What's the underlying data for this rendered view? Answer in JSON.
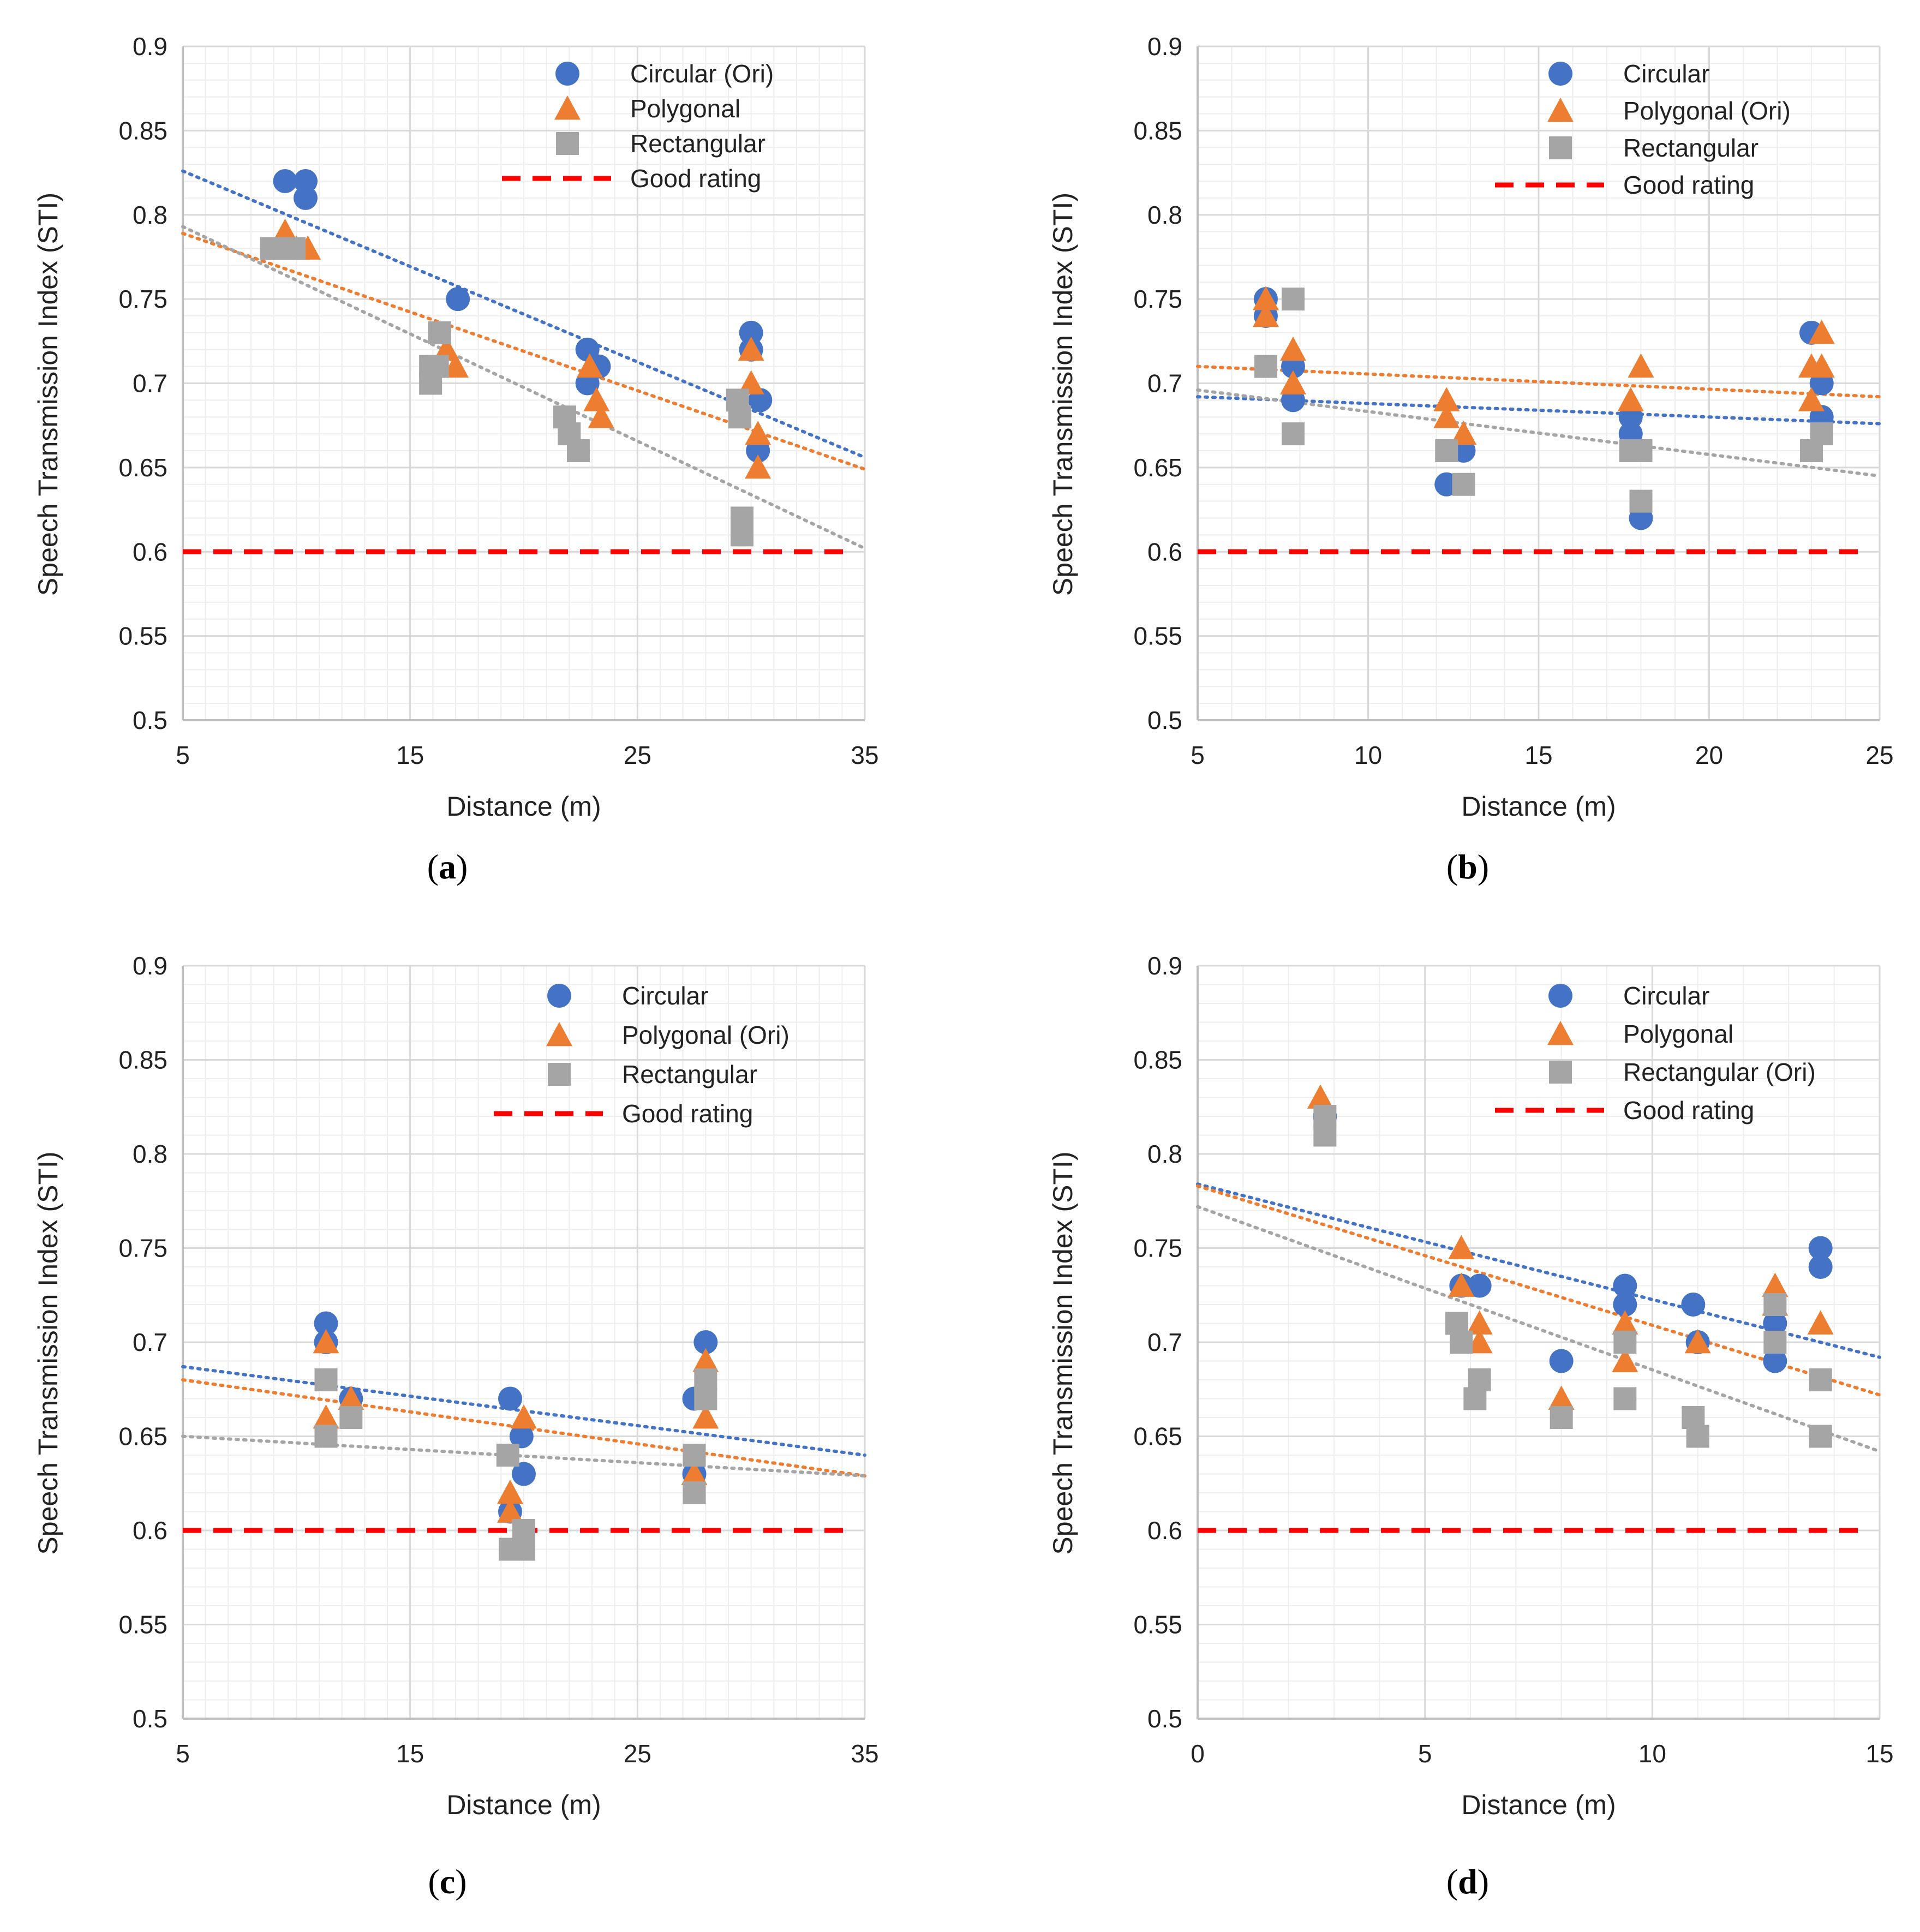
{
  "colors": {
    "circular": "#4472C4",
    "polygonal": "#ED7D31",
    "rectangular": "#A5A5A5",
    "good_rating": "#FF0000",
    "grid_major": "#D9D9D9",
    "grid_minor": "#EEEEEE",
    "axis": "#BFBFBF"
  },
  "chart_data": [
    {
      "type": "scatter",
      "panel_label": "a",
      "xlabel": "Distance (m)",
      "ylabel": "Speech Transmission Index (STI)",
      "xlim": [
        5,
        35
      ],
      "ylim": [
        0.5,
        0.9
      ],
      "xticks": [
        "5",
        "15",
        "25",
        "35"
      ],
      "yticks": [
        "0.5",
        "0.55",
        "0.6",
        "0.65",
        "0.7",
        "0.75",
        "0.8",
        "0.85",
        "0.9"
      ],
      "good_rating": 0.6,
      "legend_position": "top-right",
      "series": [
        {
          "key": "circular",
          "name": "Circular (Ori)",
          "marker": "circle",
          "points": [
            [
              9.5,
              0.82
            ],
            [
              10.4,
              0.82
            ],
            [
              10.4,
              0.81
            ],
            [
              17.1,
              0.75
            ],
            [
              22.8,
              0.72
            ],
            [
              22.8,
              0.7
            ],
            [
              23.3,
              0.71
            ],
            [
              30.0,
              0.73
            ],
            [
              30.0,
              0.72
            ],
            [
              30.4,
              0.69
            ],
            [
              30.3,
              0.66
            ]
          ],
          "trend": [
            [
              5,
              0.826
            ],
            [
              35,
              0.656
            ]
          ]
        },
        {
          "key": "polygonal",
          "name": "Polygonal",
          "marker": "triangle",
          "points": [
            [
              9.5,
              0.79
            ],
            [
              10.0,
              0.78
            ],
            [
              10.5,
              0.78
            ],
            [
              16.6,
              0.72
            ],
            [
              17.0,
              0.71
            ],
            [
              22.9,
              0.71
            ],
            [
              23.2,
              0.69
            ],
            [
              23.4,
              0.68
            ],
            [
              30.0,
              0.72
            ],
            [
              30.0,
              0.7
            ],
            [
              30.3,
              0.67
            ],
            [
              30.3,
              0.65
            ]
          ],
          "trend": [
            [
              5,
              0.789
            ],
            [
              35,
              0.649
            ]
          ]
        },
        {
          "key": "rectangular",
          "name": "Rectangular",
          "marker": "square",
          "points": [
            [
              8.9,
              0.78
            ],
            [
              9.9,
              0.78
            ],
            [
              16.3,
              0.73
            ],
            [
              15.9,
              0.71
            ],
            [
              16.2,
              0.71
            ],
            [
              15.9,
              0.7
            ],
            [
              21.8,
              0.68
            ],
            [
              22.0,
              0.67
            ],
            [
              22.4,
              0.66
            ],
            [
              29.4,
              0.69
            ],
            [
              29.5,
              0.68
            ],
            [
              29.6,
              0.62
            ],
            [
              29.6,
              0.61
            ]
          ],
          "trend": [
            [
              5,
              0.793
            ],
            [
              35,
              0.602
            ]
          ]
        }
      ],
      "good_label": "Good rating"
    },
    {
      "type": "scatter",
      "panel_label": "b",
      "xlabel": "Distance (m)",
      "ylabel": "Speech Transmission Index (STI)",
      "xlim": [
        5,
        25
      ],
      "ylim": [
        0.5,
        0.9
      ],
      "xticks": [
        "5",
        "10",
        "15",
        "20",
        "25"
      ],
      "yticks": [
        "0.5",
        "0.55",
        "0.6",
        "0.65",
        "0.7",
        "0.75",
        "0.8",
        "0.85",
        "0.9"
      ],
      "good_rating": 0.6,
      "legend_position": "top-right",
      "series": [
        {
          "key": "circular",
          "name": "Circular",
          "marker": "circle",
          "points": [
            [
              7.0,
              0.75
            ],
            [
              7.0,
              0.74
            ],
            [
              7.8,
              0.71
            ],
            [
              7.8,
              0.69
            ],
            [
              12.3,
              0.64
            ],
            [
              12.8,
              0.66
            ],
            [
              17.7,
              0.68
            ],
            [
              17.7,
              0.67
            ],
            [
              18.0,
              0.62
            ],
            [
              23.0,
              0.73
            ],
            [
              23.3,
              0.7
            ],
            [
              23.3,
              0.68
            ]
          ],
          "trend": [
            [
              5,
              0.692
            ],
            [
              25,
              0.676
            ]
          ]
        },
        {
          "key": "polygonal",
          "name": "Polygonal (Ori)",
          "marker": "triangle",
          "points": [
            [
              7.0,
              0.75
            ],
            [
              7.0,
              0.74
            ],
            [
              7.8,
              0.72
            ],
            [
              7.8,
              0.7
            ],
            [
              12.3,
              0.69
            ],
            [
              12.3,
              0.68
            ],
            [
              12.8,
              0.67
            ],
            [
              17.7,
              0.69
            ],
            [
              18.0,
              0.71
            ],
            [
              23.0,
              0.71
            ],
            [
              23.0,
              0.69
            ],
            [
              23.3,
              0.73
            ],
            [
              23.3,
              0.71
            ]
          ],
          "trend": [
            [
              5,
              0.71
            ],
            [
              25,
              0.692
            ]
          ]
        },
        {
          "key": "rectangular",
          "name": "Rectangular",
          "marker": "square",
          "points": [
            [
              7.0,
              0.71
            ],
            [
              7.8,
              0.75
            ],
            [
              7.8,
              0.67
            ],
            [
              12.3,
              0.66
            ],
            [
              12.8,
              0.64
            ],
            [
              17.7,
              0.66
            ],
            [
              18.0,
              0.66
            ],
            [
              18.0,
              0.63
            ],
            [
              23.0,
              0.66
            ],
            [
              23.3,
              0.67
            ]
          ],
          "trend": [
            [
              5,
              0.696
            ],
            [
              25,
              0.645
            ]
          ]
        }
      ],
      "good_label": "Good rating"
    },
    {
      "type": "scatter",
      "panel_label": "c",
      "xlabel": "Distance (m)",
      "ylabel": "Speech Transmission Index (STI)",
      "xlim": [
        5,
        35
      ],
      "ylim": [
        0.5,
        0.9
      ],
      "xticks": [
        "5",
        "15",
        "25",
        "35"
      ],
      "yticks": [
        "0.5",
        "0.55",
        "0.6",
        "0.65",
        "0.7",
        "0.75",
        "0.8",
        "0.85",
        "0.9"
      ],
      "good_rating": 0.6,
      "legend_position": "top-right",
      "series": [
        {
          "key": "circular",
          "name": "Circular",
          "marker": "circle",
          "points": [
            [
              11.3,
              0.71
            ],
            [
              11.3,
              0.7
            ],
            [
              12.4,
              0.67
            ],
            [
              19.4,
              0.67
            ],
            [
              19.4,
              0.61
            ],
            [
              19.9,
              0.65
            ],
            [
              20.0,
              0.63
            ],
            [
              27.5,
              0.67
            ],
            [
              27.5,
              0.63
            ],
            [
              28.0,
              0.7
            ]
          ],
          "trend": [
            [
              5,
              0.687
            ],
            [
              35,
              0.64
            ]
          ]
        },
        {
          "key": "polygonal",
          "name": "Polygonal (Ori)",
          "marker": "triangle",
          "points": [
            [
              11.3,
              0.7
            ],
            [
              11.3,
              0.66
            ],
            [
              12.4,
              0.67
            ],
            [
              19.4,
              0.62
            ],
            [
              19.4,
              0.61
            ],
            [
              20.0,
              0.66
            ],
            [
              27.5,
              0.63
            ],
            [
              28.0,
              0.69
            ],
            [
              28.0,
              0.66
            ]
          ],
          "trend": [
            [
              5,
              0.68
            ],
            [
              35,
              0.629
            ]
          ]
        },
        {
          "key": "rectangular",
          "name": "Rectangular",
          "marker": "square",
          "points": [
            [
              11.3,
              0.68
            ],
            [
              11.3,
              0.65
            ],
            [
              12.4,
              0.66
            ],
            [
              19.3,
              0.64
            ],
            [
              19.4,
              0.59
            ],
            [
              20.0,
              0.6
            ],
            [
              20.0,
              0.59
            ],
            [
              27.5,
              0.64
            ],
            [
              27.5,
              0.62
            ],
            [
              28.0,
              0.68
            ],
            [
              28.0,
              0.67
            ]
          ],
          "trend": [
            [
              5,
              0.65
            ],
            [
              35,
              0.629
            ]
          ]
        }
      ],
      "good_label": "Good rating"
    },
    {
      "type": "scatter",
      "panel_label": "d",
      "xlabel": "Distance (m)",
      "ylabel": "Speech Transmission Index (STI)",
      "xlim": [
        0,
        15
      ],
      "ylim": [
        0.5,
        0.9
      ],
      "xticks": [
        "0",
        "5",
        "10",
        "15"
      ],
      "yticks": [
        "0.5",
        "0.55",
        "0.6",
        "0.65",
        "0.7",
        "0.75",
        "0.8",
        "0.85",
        "0.9"
      ],
      "good_rating": 0.6,
      "legend_position": "top-right",
      "series": [
        {
          "key": "circular",
          "name": "Circular",
          "marker": "circle",
          "points": [
            [
              2.8,
              0.82
            ],
            [
              5.8,
              0.73
            ],
            [
              6.2,
              0.73
            ],
            [
              8.0,
              0.69
            ],
            [
              9.4,
              0.73
            ],
            [
              9.4,
              0.72
            ],
            [
              10.9,
              0.72
            ],
            [
              11.0,
              0.7
            ],
            [
              12.7,
              0.71
            ],
            [
              12.7,
              0.69
            ],
            [
              13.7,
              0.75
            ],
            [
              13.7,
              0.74
            ]
          ],
          "trend": [
            [
              0,
              0.784
            ],
            [
              15,
              0.692
            ]
          ]
        },
        {
          "key": "polygonal",
          "name": "Polygonal",
          "marker": "triangle",
          "points": [
            [
              2.7,
              0.83
            ],
            [
              5.8,
              0.75
            ],
            [
              5.8,
              0.73
            ],
            [
              6.2,
              0.71
            ],
            [
              6.2,
              0.7
            ],
            [
              8.0,
              0.67
            ],
            [
              9.4,
              0.71
            ],
            [
              9.4,
              0.69
            ],
            [
              11.0,
              0.7
            ],
            [
              12.7,
              0.73
            ],
            [
              12.7,
              0.72
            ],
            [
              13.7,
              0.71
            ]
          ],
          "trend": [
            [
              0,
              0.783
            ],
            [
              15,
              0.672
            ]
          ]
        },
        {
          "key": "rectangular",
          "name": "Rectangular (Ori)",
          "marker": "square",
          "points": [
            [
              2.8,
              0.82
            ],
            [
              2.8,
              0.81
            ],
            [
              5.7,
              0.71
            ],
            [
              5.8,
              0.7
            ],
            [
              6.2,
              0.68
            ],
            [
              6.1,
              0.67
            ],
            [
              8.0,
              0.66
            ],
            [
              9.4,
              0.7
            ],
            [
              9.4,
              0.67
            ],
            [
              10.9,
              0.66
            ],
            [
              11.0,
              0.65
            ],
            [
              12.7,
              0.72
            ],
            [
              12.7,
              0.7
            ],
            [
              13.7,
              0.68
            ],
            [
              13.7,
              0.65
            ]
          ],
          "trend": [
            [
              0,
              0.772
            ],
            [
              15,
              0.642
            ]
          ]
        }
      ],
      "good_label": "Good rating"
    }
  ]
}
